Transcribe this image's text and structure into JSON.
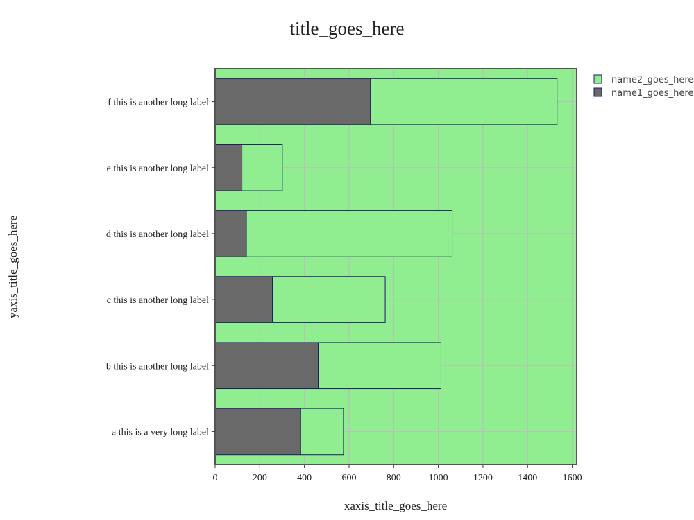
{
  "chart_data": {
    "type": "bar",
    "orientation": "horizontal",
    "barmode": "stack",
    "title": "title_goes_here",
    "xlabel": "xaxis_title_goes_here",
    "ylabel": "yaxis_title_goes_here",
    "categories": [
      "a this is a very long label",
      "b this is another long label",
      "c this is another long label",
      "d this is another long label",
      "e this is another long label",
      "f this is another long label"
    ],
    "series": [
      {
        "name": "name1_goes_here",
        "color": "#696969",
        "values": [
          383,
          462,
          257,
          140,
          120,
          696
        ]
      },
      {
        "name": "name2_goes_here",
        "color": "#90ee90",
        "values": [
          192,
          550,
          505,
          922,
          181,
          836
        ]
      }
    ],
    "xlim": [
      0,
      1620
    ],
    "xticks": [
      0,
      200,
      400,
      600,
      800,
      1000,
      1200,
      1400,
      1600
    ],
    "grid": true,
    "legend_position": "top-right",
    "plot_background": "#90ee90",
    "bar_outline_color": "#1a1a6e",
    "axis_frame_color": "#555555",
    "grid_color": "#bbbbbb"
  }
}
